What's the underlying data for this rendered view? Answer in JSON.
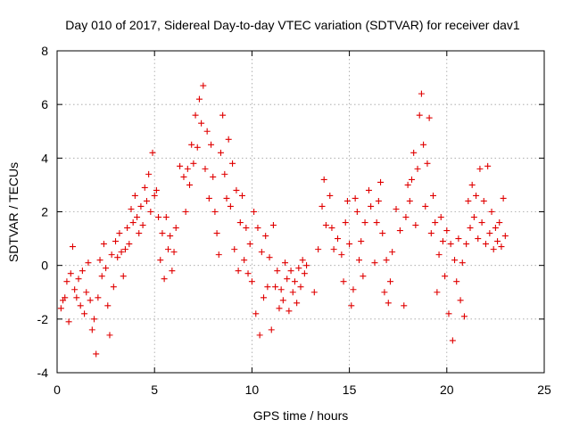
{
  "chart_data": {
    "type": "scatter",
    "title": "Day 010 of 2017, Sidereal Day-to-day VTEC variation (SDTVAR) for receiver dav1",
    "xlabel": "GPS time / hours",
    "ylabel": "SDTVAR / TECUs",
    "xlim": [
      0,
      25
    ],
    "ylim": [
      -4,
      8
    ],
    "xticks": [
      "0",
      "5",
      "10",
      "15",
      "20",
      "25"
    ],
    "yticks": [
      "-4",
      "-2",
      "0",
      "2",
      "4",
      "6",
      "8"
    ],
    "grid": true,
    "marker": "+",
    "series_color": "#e00000",
    "series": [
      {
        "name": "SDTVAR",
        "points": [
          [
            0.2,
            -1.6
          ],
          [
            0.3,
            -1.3
          ],
          [
            0.4,
            -1.2
          ],
          [
            0.5,
            -0.6
          ],
          [
            0.6,
            -2.1
          ],
          [
            0.7,
            -0.3
          ],
          [
            0.8,
            0.7
          ],
          [
            0.9,
            -0.9
          ],
          [
            1.0,
            -1.2
          ],
          [
            1.1,
            -0.5
          ],
          [
            1.2,
            -1.5
          ],
          [
            1.3,
            -0.2
          ],
          [
            1.4,
            -1.8
          ],
          [
            1.5,
            -1.0
          ],
          [
            1.6,
            0.1
          ],
          [
            1.7,
            -1.3
          ],
          [
            1.8,
            -2.4
          ],
          [
            1.9,
            -2.0
          ],
          [
            2.0,
            -3.3
          ],
          [
            2.1,
            -1.2
          ],
          [
            2.2,
            0.2
          ],
          [
            2.3,
            -0.4
          ],
          [
            2.4,
            0.8
          ],
          [
            2.5,
            -0.1
          ],
          [
            2.6,
            -1.5
          ],
          [
            2.7,
            -2.6
          ],
          [
            2.8,
            0.4
          ],
          [
            2.9,
            -0.8
          ],
          [
            3.0,
            0.9
          ],
          [
            3.1,
            0.3
          ],
          [
            3.2,
            1.2
          ],
          [
            3.3,
            0.5
          ],
          [
            3.4,
            -0.4
          ],
          [
            3.5,
            0.6
          ],
          [
            3.6,
            1.4
          ],
          [
            3.7,
            0.8
          ],
          [
            3.8,
            2.1
          ],
          [
            3.9,
            1.6
          ],
          [
            4.0,
            2.6
          ],
          [
            4.1,
            1.8
          ],
          [
            4.2,
            1.2
          ],
          [
            4.3,
            2.2
          ],
          [
            4.4,
            1.5
          ],
          [
            4.5,
            2.9
          ],
          [
            4.6,
            2.4
          ],
          [
            4.7,
            3.4
          ],
          [
            4.8,
            2.0
          ],
          [
            4.9,
            4.2
          ],
          [
            5.0,
            2.6
          ],
          [
            5.1,
            2.8
          ],
          [
            5.2,
            1.8
          ],
          [
            5.3,
            0.2
          ],
          [
            5.4,
            1.2
          ],
          [
            5.5,
            -0.5
          ],
          [
            5.6,
            1.8
          ],
          [
            5.7,
            0.6
          ],
          [
            5.8,
            1.1
          ],
          [
            5.9,
            -0.2
          ],
          [
            6.0,
            0.5
          ],
          [
            6.1,
            1.4
          ],
          [
            6.3,
            3.7
          ],
          [
            6.5,
            3.3
          ],
          [
            6.6,
            2.0
          ],
          [
            6.7,
            3.6
          ],
          [
            6.8,
            3.0
          ],
          [
            6.9,
            4.5
          ],
          [
            7.0,
            3.8
          ],
          [
            7.1,
            5.6
          ],
          [
            7.2,
            4.4
          ],
          [
            7.3,
            6.2
          ],
          [
            7.4,
            5.3
          ],
          [
            7.5,
            6.7
          ],
          [
            7.6,
            3.6
          ],
          [
            7.7,
            5.0
          ],
          [
            7.8,
            2.5
          ],
          [
            7.9,
            4.5
          ],
          [
            8.0,
            3.3
          ],
          [
            8.1,
            2.0
          ],
          [
            8.2,
            1.2
          ],
          [
            8.3,
            0.4
          ],
          [
            8.4,
            4.2
          ],
          [
            8.5,
            5.6
          ],
          [
            8.6,
            3.4
          ],
          [
            8.7,
            2.5
          ],
          [
            8.8,
            4.7
          ],
          [
            8.9,
            2.2
          ],
          [
            9.0,
            3.8
          ],
          [
            9.1,
            0.6
          ],
          [
            9.2,
            2.8
          ],
          [
            9.3,
            -0.2
          ],
          [
            9.4,
            1.6
          ],
          [
            9.5,
            2.6
          ],
          [
            9.6,
            0.2
          ],
          [
            9.7,
            1.4
          ],
          [
            9.8,
            -0.3
          ],
          [
            9.9,
            0.8
          ],
          [
            10.0,
            -0.6
          ],
          [
            10.1,
            2.0
          ],
          [
            10.2,
            -1.8
          ],
          [
            10.3,
            1.4
          ],
          [
            10.4,
            -2.6
          ],
          [
            10.5,
            0.5
          ],
          [
            10.6,
            -1.2
          ],
          [
            10.7,
            1.1
          ],
          [
            10.8,
            -0.8
          ],
          [
            10.9,
            0.3
          ],
          [
            11.0,
            -2.4
          ],
          [
            11.1,
            1.5
          ],
          [
            11.2,
            -0.8
          ],
          [
            11.3,
            -0.2
          ],
          [
            11.4,
            -1.6
          ],
          [
            11.5,
            -0.9
          ],
          [
            11.6,
            -1.3
          ],
          [
            11.7,
            0.1
          ],
          [
            11.8,
            -0.5
          ],
          [
            11.9,
            -1.7
          ],
          [
            12.0,
            -0.2
          ],
          [
            12.1,
            -1.0
          ],
          [
            12.2,
            -0.6
          ],
          [
            12.3,
            -1.4
          ],
          [
            12.4,
            -0.1
          ],
          [
            12.5,
            -0.8
          ],
          [
            12.6,
            0.2
          ],
          [
            12.7,
            -0.3
          ],
          [
            12.8,
            0.0
          ],
          [
            13.2,
            -1.0
          ],
          [
            13.4,
            0.6
          ],
          [
            13.6,
            2.2
          ],
          [
            13.7,
            3.2
          ],
          [
            13.8,
            1.5
          ],
          [
            14.0,
            2.6
          ],
          [
            14.1,
            1.4
          ],
          [
            14.2,
            0.6
          ],
          [
            14.4,
            1.0
          ],
          [
            14.6,
            0.4
          ],
          [
            14.7,
            -0.6
          ],
          [
            14.8,
            1.6
          ],
          [
            14.9,
            2.4
          ],
          [
            15.0,
            0.8
          ],
          [
            15.1,
            -1.5
          ],
          [
            15.2,
            -0.9
          ],
          [
            15.3,
            2.5
          ],
          [
            15.4,
            2.0
          ],
          [
            15.5,
            0.2
          ],
          [
            15.6,
            0.9
          ],
          [
            15.7,
            -0.4
          ],
          [
            15.8,
            1.6
          ],
          [
            16.0,
            2.8
          ],
          [
            16.1,
            2.2
          ],
          [
            16.3,
            0.1
          ],
          [
            16.4,
            1.6
          ],
          [
            16.5,
            2.4
          ],
          [
            16.6,
            3.1
          ],
          [
            16.7,
            1.2
          ],
          [
            16.8,
            -1.0
          ],
          [
            16.9,
            0.2
          ],
          [
            17.0,
            -1.4
          ],
          [
            17.1,
            -0.6
          ],
          [
            17.2,
            0.5
          ],
          [
            17.4,
            2.1
          ],
          [
            17.6,
            1.3
          ],
          [
            17.8,
            -1.5
          ],
          [
            17.9,
            1.8
          ],
          [
            18.0,
            3.0
          ],
          [
            18.1,
            2.4
          ],
          [
            18.2,
            3.2
          ],
          [
            18.3,
            4.2
          ],
          [
            18.4,
            1.5
          ],
          [
            18.5,
            3.6
          ],
          [
            18.6,
            5.6
          ],
          [
            18.7,
            6.4
          ],
          [
            18.8,
            4.5
          ],
          [
            18.9,
            2.2
          ],
          [
            19.0,
            3.8
          ],
          [
            19.1,
            5.5
          ],
          [
            19.2,
            1.2
          ],
          [
            19.3,
            2.6
          ],
          [
            19.4,
            1.6
          ],
          [
            19.5,
            -1.0
          ],
          [
            19.6,
            0.4
          ],
          [
            19.7,
            1.8
          ],
          [
            19.8,
            0.9
          ],
          [
            19.9,
            -0.4
          ],
          [
            20.0,
            1.3
          ],
          [
            20.1,
            -1.8
          ],
          [
            20.2,
            0.8
          ],
          [
            20.3,
            -2.8
          ],
          [
            20.4,
            0.2
          ],
          [
            20.5,
            -0.6
          ],
          [
            20.6,
            1.0
          ],
          [
            20.7,
            -1.3
          ],
          [
            20.8,
            0.1
          ],
          [
            20.9,
            -1.9
          ],
          [
            21.0,
            0.8
          ],
          [
            21.1,
            2.4
          ],
          [
            21.2,
            1.4
          ],
          [
            21.3,
            3.0
          ],
          [
            21.4,
            1.8
          ],
          [
            21.5,
            2.6
          ],
          [
            21.6,
            1.0
          ],
          [
            21.7,
            3.6
          ],
          [
            21.8,
            1.6
          ],
          [
            21.9,
            2.4
          ],
          [
            22.0,
            0.8
          ],
          [
            22.1,
            3.7
          ],
          [
            22.2,
            1.2
          ],
          [
            22.3,
            2.0
          ],
          [
            22.4,
            0.6
          ],
          [
            22.5,
            1.4
          ],
          [
            22.6,
            0.9
          ],
          [
            22.7,
            1.6
          ],
          [
            22.8,
            0.7
          ],
          [
            22.9,
            2.5
          ],
          [
            23.0,
            1.1
          ]
        ]
      }
    ]
  }
}
